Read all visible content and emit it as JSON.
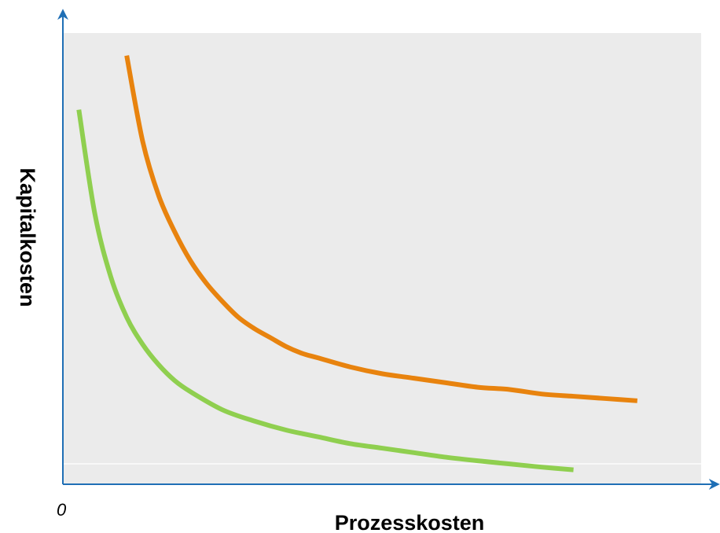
{
  "chart_data": {
    "type": "line",
    "title": "",
    "xlabel": "Prozesskosten",
    "ylabel": "Kapitalkosten",
    "origin_label": "0",
    "xlim": [
      0,
      10
    ],
    "ylim": [
      0,
      10
    ],
    "grid": false,
    "legend": "none",
    "plot_background": "#ebebeb",
    "axis_color": "#1f6fb5",
    "series": [
      {
        "color": "#e8830e",
        "x": [
          1.0,
          1.25,
          1.5,
          1.75,
          2.0,
          2.25,
          2.5,
          2.75,
          3.0,
          3.25,
          3.5,
          3.75,
          4.0,
          4.5,
          5.0,
          5.5,
          6.0,
          6.5,
          7.0,
          7.5,
          8.0,
          8.5,
          9.0
        ],
        "y": [
          9.5,
          7.6,
          6.4,
          5.6,
          4.95,
          4.45,
          4.05,
          3.7,
          3.45,
          3.25,
          3.05,
          2.9,
          2.8,
          2.6,
          2.45,
          2.35,
          2.25,
          2.15,
          2.1,
          2.0,
          1.95,
          1.9,
          1.85
        ]
      },
      {
        "color": "#8fcf4f",
        "x": [
          0.25,
          0.5,
          0.75,
          1.0,
          1.25,
          1.5,
          1.75,
          2.0,
          2.5,
          3.0,
          3.5,
          4.0,
          4.5,
          5.0,
          5.5,
          6.0,
          6.5,
          7.0,
          7.5,
          8.0
        ],
        "y": [
          8.3,
          6.0,
          4.6,
          3.7,
          3.1,
          2.65,
          2.3,
          2.05,
          1.65,
          1.4,
          1.2,
          1.05,
          0.9,
          0.8,
          0.7,
          0.6,
          0.52,
          0.45,
          0.38,
          0.32
        ]
      }
    ]
  }
}
